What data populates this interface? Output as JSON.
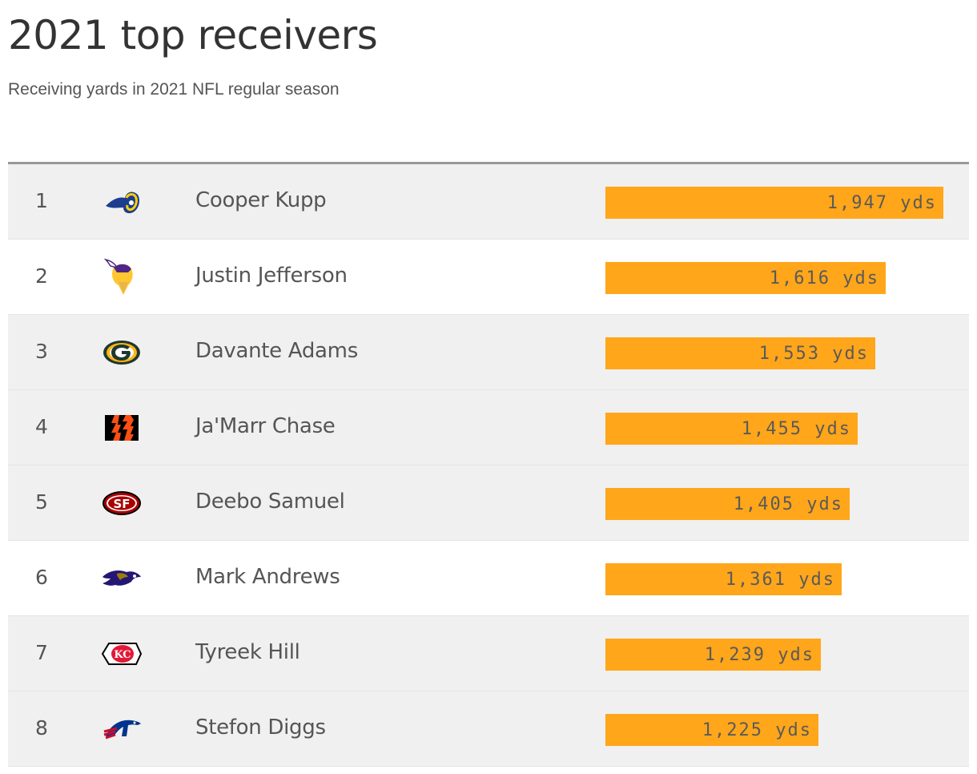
{
  "title": "2021 top receivers",
  "subtitle": "Receiving yards in 2021 NFL regular season",
  "colors": {
    "bar": "#ffa61a",
    "row_shade": "#f0f0f0",
    "text": "#555555"
  },
  "chart_data": {
    "type": "bar",
    "orientation": "horizontal",
    "title": "2021 top receivers",
    "subtitle": "Receiving yards in 2021 NFL regular season",
    "unit": "yds",
    "xlim": [
      0,
      2000
    ],
    "categories": [
      "Cooper Kupp",
      "Justin Jefferson",
      "Davante Adams",
      "Ja'Marr Chase",
      "Deebo Samuel",
      "Mark Andrews",
      "Tyreek Hill",
      "Stefon Diggs"
    ],
    "values": [
      1947,
      1616,
      1553,
      1455,
      1405,
      1361,
      1239,
      1225
    ],
    "rows": [
      {
        "rank": "1",
        "name": "Cooper Kupp",
        "yards": 1947,
        "label": "1,947 yds",
        "team_icon": "rams-logo-icon"
      },
      {
        "rank": "2",
        "name": "Justin Jefferson",
        "yards": 1616,
        "label": "1,616 yds",
        "team_icon": "vikings-logo-icon"
      },
      {
        "rank": "3",
        "name": "Davante Adams",
        "yards": 1553,
        "label": "1,553 yds",
        "team_icon": "packers-logo-icon"
      },
      {
        "rank": "4",
        "name": "Ja'Marr Chase",
        "yards": 1455,
        "label": "1,455 yds",
        "team_icon": "bengals-logo-icon"
      },
      {
        "rank": "5",
        "name": "Deebo Samuel",
        "yards": 1405,
        "label": "1,405 yds",
        "team_icon": "49ers-logo-icon"
      },
      {
        "rank": "6",
        "name": "Mark Andrews",
        "yards": 1361,
        "label": "1,361 yds",
        "team_icon": "ravens-logo-icon"
      },
      {
        "rank": "7",
        "name": "Tyreek Hill",
        "yards": 1239,
        "label": "1,239 yds",
        "team_icon": "chiefs-logo-icon"
      },
      {
        "rank": "8",
        "name": "Stefon Diggs",
        "yards": 1225,
        "label": "1,225 yds",
        "team_icon": "bills-logo-icon"
      }
    ]
  }
}
